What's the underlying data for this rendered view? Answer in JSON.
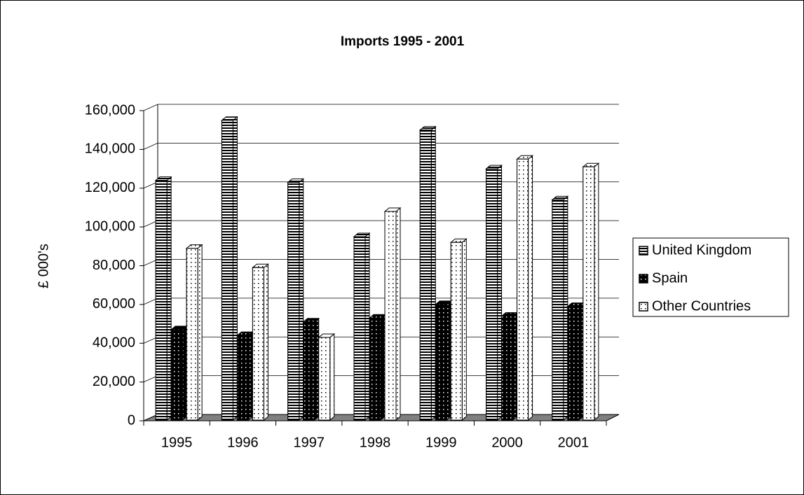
{
  "chart_data": {
    "type": "bar3d",
    "title": "Imports  1995 - 2001",
    "y_label": "£ 000's",
    "categories": [
      "1995",
      "1996",
      "1997",
      "1998",
      "1999",
      "2000",
      "2001"
    ],
    "series": [
      {
        "name": "United Kingdom",
        "color": "#ffffff",
        "values": [
          124000,
          155000,
          123000,
          95000,
          150000,
          130000,
          114000
        ]
      },
      {
        "name": "Spain",
        "color": "#000000",
        "values": [
          47000,
          44000,
          51000,
          53000,
          60000,
          54000,
          59000
        ]
      },
      {
        "name": "Other Countries",
        "color": "#ffffff",
        "values": [
          89000,
          79000,
          43000,
          108000,
          92000,
          135000,
          131000
        ]
      }
    ],
    "ylim": [
      0,
      160000
    ],
    "yticks": [
      0,
      {
        "value": 20000,
        "label": "20,000"
      },
      {
        "value": 40000,
        "label": "40,000"
      },
      {
        "value": 60000,
        "label": "60,000"
      },
      {
        "value": 80000,
        "label": "80,000"
      },
      {
        "value": 100000,
        "label": "100,000"
      },
      {
        "value": 120000,
        "label": "120,000"
      },
      {
        "value": 140000,
        "label": "140,000"
      },
      {
        "value": 160000,
        "label": "160,000"
      }
    ],
    "grid": true,
    "legend": "right"
  }
}
